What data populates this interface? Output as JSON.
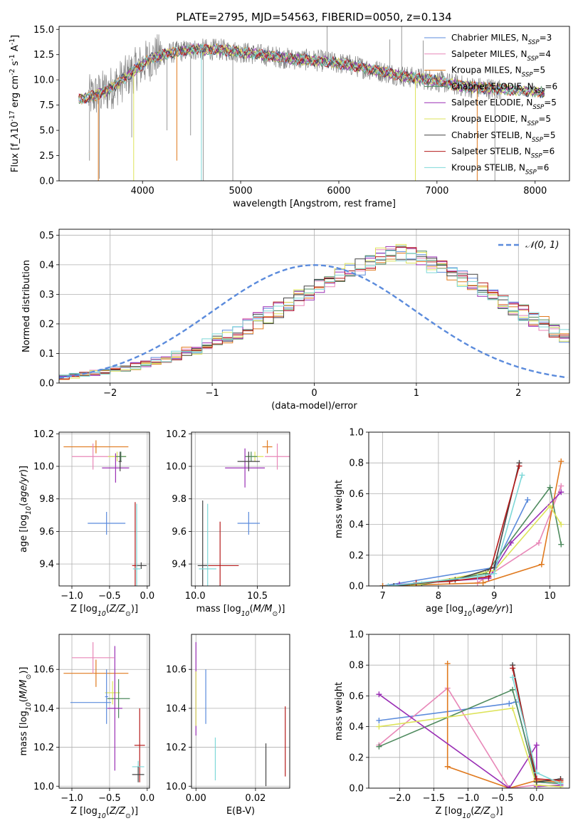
{
  "figure_title": "PLATE=2795, MJD=54563, FIBERID=0050, z=0.134",
  "colors": {
    "Chabrier MILES": "#5b8bdc",
    "Salpeter MILES": "#e887b8",
    "Kroupa MILES": "#e07a1f",
    "Chabrier ELODIE": "#4e8a5e",
    "Salpeter ELODIE": "#9a2fb5",
    "Kroupa ELODIE": "#dde35a",
    "Chabrier STELIB": "#444444",
    "Salpeter STELIB": "#b51b1b",
    "Kroupa STELIB": "#7ed8d8",
    "observed": "#808080",
    "gaussian": "#5b8bdc"
  },
  "chart_data": [
    {
      "id": "spectrum",
      "type": "line",
      "title": "PLATE=2795, MJD=54563, FIBERID=0050, z=0.134",
      "xlabel": "wavelength [Angstrom, rest frame]",
      "ylabel": "Flux [f$_\\lambda$10$^{-17}$ erg cm$^{-2}$ s$^{-1}$ A$^{-1}$]",
      "xlim": [
        3150,
        8350
      ],
      "ylim": [
        0,
        15.3
      ],
      "xticks": [
        4000,
        5000,
        6000,
        7000,
        8000
      ],
      "yticks": [
        "0.0",
        "2.5",
        "5.0",
        "7.5",
        "10.0",
        "12.5",
        "15.0"
      ],
      "grid": false,
      "legend_position": "upper-right",
      "legend": [
        {
          "name": "Chabrier MILES",
          "label": "Chabrier MILES, N$_{SSP}$=3"
        },
        {
          "name": "Salpeter MILES",
          "label": "Salpeter MILES, N$_{SSP}$=4"
        },
        {
          "name": "Kroupa MILES",
          "label": "Kroupa MILES, N$_{SSP}$=5"
        },
        {
          "name": "Chabrier ELODIE",
          "label": "Chabrier ELODIE, N$_{SSP}$=6"
        },
        {
          "name": "Salpeter ELODIE",
          "label": "Salpeter ELODIE, N$_{SSP}$=5"
        },
        {
          "name": "Kroupa ELODIE",
          "label": "Kroupa ELODIE, N$_{SSP}$=5"
        },
        {
          "name": "Chabrier STELIB",
          "label": "Chabrier STELIB, N$_{SSP}$=5"
        },
        {
          "name": "Salpeter STELIB",
          "label": "Salpeter STELIB, N$_{SSP}$=6"
        },
        {
          "name": "Kroupa STELIB",
          "label": "Kroupa STELIB, N$_{SSP}$=6"
        }
      ],
      "continuum": [
        [
          3350,
          8.1
        ],
        [
          3500,
          8.4
        ],
        [
          3650,
          9.0
        ],
        [
          3800,
          10.0
        ],
        [
          3950,
          11.2
        ],
        [
          4100,
          12.2
        ],
        [
          4300,
          12.7
        ],
        [
          4500,
          13.0
        ],
        [
          4800,
          13.0
        ],
        [
          5200,
          12.5
        ],
        [
          5500,
          12.1
        ],
        [
          5800,
          11.9
        ],
        [
          6100,
          11.5
        ],
        [
          6400,
          10.9
        ],
        [
          6700,
          10.3
        ],
        [
          7000,
          9.9
        ],
        [
          7300,
          9.3
        ],
        [
          7600,
          9.1
        ],
        [
          7900,
          8.9
        ],
        [
          8100,
          8.7
        ]
      ],
      "model_range": [
        3350,
        8100
      ],
      "observed_range": [
        3450,
        7650
      ],
      "observed_spikes": [
        [
          3460,
          2.0
        ],
        [
          3560,
          0.2
        ],
        [
          3890,
          4.3
        ],
        [
          4250,
          5.0
        ],
        [
          4490,
          4.5
        ],
        [
          4620,
          0.0
        ],
        [
          4920,
          0.0
        ],
        [
          5880,
          15.3
        ],
        [
          6520,
          14.0
        ],
        [
          6640,
          15.3
        ],
        [
          6860,
          13.9
        ],
        [
          7180,
          10.3
        ],
        [
          7590,
          0.0
        ]
      ],
      "model_spikes": [
        {
          "series": "Kroupa MILES",
          "x": 3550,
          "y": 0.0
        },
        {
          "series": "Kroupa ELODIE",
          "x": 3910,
          "y": 0.0
        },
        {
          "series": "Kroupa STELIB",
          "x": 4600,
          "y": 0.0
        },
        {
          "series": "Kroupa MILES",
          "x": 4350,
          "y": 2.0
        },
        {
          "series": "Kroupa ELODIE",
          "x": 6780,
          "y": 0.0
        },
        {
          "series": "Kroupa MILES",
          "x": 7410,
          "y": 0.0
        }
      ]
    },
    {
      "id": "residuals",
      "type": "area",
      "xlabel": "(data-model)/error",
      "ylabel": "Normed distribution",
      "xlim": [
        -2.5,
        2.5
      ],
      "ylim": [
        0,
        0.52
      ],
      "xticks": [
        "−2",
        "−1",
        "0",
        "1",
        "2"
      ],
      "yticks": [
        "0.0",
        "0.1",
        "0.2",
        "0.3",
        "0.4",
        "0.5"
      ],
      "grid": true,
      "legend_position": "upper-right",
      "legend": [
        {
          "name": "gaussian",
          "label": "$\\mathcal{N}(0, 1)$"
        }
      ],
      "bin_width": 0.1,
      "bin_start": -2.5,
      "histogram_envelope": [
        0.02,
        0.025,
        0.03,
        0.035,
        0.04,
        0.045,
        0.05,
        0.058,
        0.065,
        0.075,
        0.085,
        0.095,
        0.105,
        0.115,
        0.13,
        0.145,
        0.16,
        0.175,
        0.19,
        0.21,
        0.23,
        0.25,
        0.27,
        0.29,
        0.31,
        0.33,
        0.35,
        0.37,
        0.38,
        0.39,
        0.41,
        0.43,
        0.44,
        0.44,
        0.43,
        0.42,
        0.4,
        0.39,
        0.37,
        0.35,
        0.34,
        0.32,
        0.3,
        0.28,
        0.26,
        0.24,
        0.22,
        0.2,
        0.18,
        0.16,
        0.14,
        0.12,
        0.1,
        0.09,
        0.08,
        0.07,
        0.06,
        0.05,
        0.045,
        0.04,
        0.035,
        0.03,
        0.025,
        0.02,
        0.018,
        0.016,
        0.014,
        0.012,
        0.01,
        0.01
      ]
    },
    {
      "id": "age_vs_Z",
      "type": "scatter",
      "xlabel": "Z [log$_{10}$($Z/Z_\\odot$)]",
      "ylabel": "age  [log$_{10}$($age/yr$)]",
      "xlim": [
        -1.17,
        0.03
      ],
      "ylim": [
        9.265,
        10.21
      ],
      "xticks": [
        "−1.0",
        "−0.5",
        "0.0"
      ],
      "yticks": [
        "9.4",
        "9.6",
        "9.8",
        "10.0",
        "10.2"
      ],
      "grid": true,
      "points": [
        {
          "series": "Kroupa MILES",
          "x": -0.68,
          "y": 10.12,
          "xerr": 0.43,
          "yerr": 0.04
        },
        {
          "series": "Salpeter MILES",
          "x": -0.72,
          "y": 10.06,
          "xerr": 0.28,
          "yerr": 0.08
        },
        {
          "series": "Kroupa ELODIE",
          "x": -0.4,
          "y": 10.06,
          "xerr": 0.12,
          "yerr": 0.03
        },
        {
          "series": "Chabrier ELODIE",
          "x": -0.35,
          "y": 10.06,
          "xerr": 0.07,
          "yerr": 0.03
        },
        {
          "series": "Salpeter ELODIE",
          "x": -0.42,
          "y": 9.99,
          "xerr": 0.18,
          "yerr": 0.09
        },
        {
          "series": "Chabrier STELIB",
          "x": -0.36,
          "y": 10.03,
          "xerr": 0.02,
          "yerr": 0.06
        },
        {
          "series": "Chabrier MILES",
          "x": -0.54,
          "y": 9.65,
          "xerr": 0.25,
          "yerr": 0.07
        },
        {
          "series": "Salpeter STELIB",
          "x": -0.16,
          "y": 9.39,
          "xerr": 0.04,
          "yerr": 0.39
        },
        {
          "series": "Chabrier STELIB",
          "x": -0.08,
          "y": 9.39,
          "xerr": 0.07,
          "yerr": 0.02
        },
        {
          "series": "Kroupa STELIB",
          "x": -0.14,
          "y": 9.37,
          "xerr": 0.05,
          "yerr": 0.4
        }
      ]
    },
    {
      "id": "age_vs_mass",
      "type": "scatter",
      "xlabel": "mass [log$_{10}$($M/M_\\odot$)]",
      "ylabel": "",
      "xlim": [
        9.97,
        10.76
      ],
      "ylim": [
        9.265,
        10.21
      ],
      "xticks": [
        "10.0",
        "10.5"
      ],
      "yticks": [
        "9.4",
        "9.6",
        "9.8",
        "10.0",
        "10.2"
      ],
      "grid": true,
      "points": [
        {
          "series": "Kroupa MILES",
          "x": 10.58,
          "y": 10.12,
          "xerr": 0.04,
          "yerr": 0.04
        },
        {
          "series": "Salpeter MILES",
          "x": 10.66,
          "y": 10.06,
          "xerr": 0.1,
          "yerr": 0.08
        },
        {
          "series": "Kroupa ELODIE",
          "x": 10.48,
          "y": 10.06,
          "xerr": 0.07,
          "yerr": 0.03
        },
        {
          "series": "Chabrier ELODIE",
          "x": 10.45,
          "y": 10.06,
          "xerr": 0.05,
          "yerr": 0.03
        },
        {
          "series": "Salpeter ELODIE",
          "x": 10.4,
          "y": 9.99,
          "xerr": 0.16,
          "yerr": 0.12
        },
        {
          "series": "Chabrier STELIB",
          "x": 10.43,
          "y": 10.03,
          "xerr": 0.09,
          "yerr": 0.06
        },
        {
          "series": "Chabrier MILES",
          "x": 10.43,
          "y": 9.65,
          "xerr": 0.09,
          "yerr": 0.07
        },
        {
          "series": "Salpeter STELIB",
          "x": 10.2,
          "y": 9.39,
          "xerr": 0.15,
          "yerr": 0.27
        },
        {
          "series": "Chabrier STELIB",
          "x": 10.06,
          "y": 9.39,
          "xerr": 0.04,
          "yerr": 0.4
        },
        {
          "series": "Kroupa STELIB",
          "x": 10.1,
          "y": 9.37,
          "xerr": 0.07,
          "yerr": 0.4
        }
      ]
    },
    {
      "id": "weight_vs_age",
      "type": "line",
      "xlabel": "age  [log$_{10}$($age/yr$)]",
      "ylabel": "mass weight",
      "xlim": [
        6.75,
        10.35
      ],
      "ylim": [
        0,
        1.0
      ],
      "xticks": [
        "7",
        "8",
        "9",
        "10"
      ],
      "yticks": [
        "0.0",
        "0.2",
        "0.4",
        "0.6",
        "0.8",
        "1.0"
      ],
      "grid": true,
      "series": [
        {
          "name": "Chabrier MILES",
          "x": [
            7.0,
            9.0,
            9.6
          ],
          "y": [
            0.0,
            0.12,
            0.56
          ]
        },
        {
          "name": "Salpeter MILES",
          "x": [
            8.7,
            9.8,
            10.2
          ],
          "y": [
            0.02,
            0.28,
            0.65
          ]
        },
        {
          "name": "Kroupa MILES",
          "x": [
            7.0,
            8.8,
            9.85,
            10.2
          ],
          "y": [
            0.0,
            0.02,
            0.14,
            0.81
          ]
        },
        {
          "name": "Chabrier ELODIE",
          "x": [
            7.7,
            8.85,
            10.0,
            10.2
          ],
          "y": [
            0.01,
            0.08,
            0.64,
            0.27
          ]
        },
        {
          "name": "Salpeter ELODIE",
          "x": [
            7.3,
            8.9,
            9.3,
            10.2
          ],
          "y": [
            0.01,
            0.05,
            0.28,
            0.61
          ]
        },
        {
          "name": "Kroupa ELODIE",
          "x": [
            7.5,
            9.0,
            10.0,
            10.2
          ],
          "y": [
            0.0,
            0.1,
            0.52,
            0.4
          ]
        },
        {
          "name": "Chabrier STELIB",
          "x": [
            7.2,
            8.3,
            9.0,
            9.45
          ],
          "y": [
            0.0,
            0.04,
            0.12,
            0.8
          ]
        },
        {
          "name": "Salpeter STELIB",
          "x": [
            7.6,
            8.2,
            8.9,
            9.45
          ],
          "y": [
            0.02,
            0.03,
            0.06,
            0.78
          ]
        },
        {
          "name": "Kroupa STELIB",
          "x": [
            7.1,
            8.7,
            9.0,
            9.5
          ],
          "y": [
            0.0,
            0.06,
            0.08,
            0.72
          ]
        }
      ]
    },
    {
      "id": "mass_vs_Z",
      "type": "scatter",
      "xlabel": "Z [log$_{10}$($Z/Z_\\odot$)]",
      "ylabel": "mass [log$_{10}$($M/M_\\odot$)]",
      "xlim": [
        -1.17,
        0.03
      ],
      "ylim": [
        9.99,
        10.78
      ],
      "xticks": [
        "−1.0",
        "−0.5",
        "0.0"
      ],
      "yticks": [
        "10.0",
        "10.2",
        "10.4",
        "10.6"
      ],
      "grid": true,
      "points": [
        {
          "series": "Kroupa MILES",
          "x": -0.68,
          "y": 10.58,
          "xerr": 0.43,
          "yerr": 0.07
        },
        {
          "series": "Salpeter MILES",
          "x": -0.72,
          "y": 10.66,
          "xerr": 0.28,
          "yerr": 0.08
        },
        {
          "series": "Chabrier MILES",
          "x": -0.75,
          "y": 10.43,
          "xerr": 0.27,
          "yerr": 0.0
        },
        {
          "series": "Kroupa ELODIE",
          "x": -0.46,
          "y": 10.48,
          "xerr": 0.1,
          "yerr": 0.06
        },
        {
          "series": "Chabrier ELODIE",
          "x": -0.38,
          "y": 10.45,
          "xerr": 0.15,
          "yerr": 0.1
        },
        {
          "series": "Salpeter ELODIE",
          "x": -0.43,
          "y": 10.4,
          "xerr": 0.1,
          "yerr": 0.32
        },
        {
          "series": "Chabrier MILES",
          "x": -0.54,
          "y": 10.46,
          "xerr": 0.02,
          "yerr": 0.14
        },
        {
          "series": "Salpeter STELIB",
          "x": -0.1,
          "y": 10.21,
          "xerr": 0.07,
          "yerr": 0.19
        },
        {
          "series": "Kroupa STELIB",
          "x": -0.12,
          "y": 10.1,
          "xerr": 0.08,
          "yerr": 0.03
        },
        {
          "series": "Chabrier STELIB",
          "x": -0.12,
          "y": 10.06,
          "xerr": 0.08,
          "yerr": 0.04
        }
      ]
    },
    {
      "id": "mass_vs_EBV",
      "type": "scatter",
      "xlabel": "E(B-V)",
      "ylabel": "",
      "xlim": [
        -0.0015,
        0.0315
      ],
      "ylim": [
        9.99,
        10.78
      ],
      "xticks": [
        "0.00",
        "0.02"
      ],
      "yticks": [
        "10.0",
        "10.2",
        "10.4",
        "10.6"
      ],
      "grid": true,
      "points": [
        {
          "series": "Salpeter ELODIE",
          "x": 0.0,
          "y": 10.5,
          "xerr": 0.0,
          "yerr": 0.24
        },
        {
          "series": "Kroupa ELODIE",
          "x": 0.0,
          "y": 10.45,
          "xerr": 0.0,
          "yerr": 0.14
        },
        {
          "series": "Chabrier MILES",
          "x": 0.0033,
          "y": 10.46,
          "xerr": 0.0,
          "yerr": 0.14
        },
        {
          "series": "Kroupa STELIB",
          "x": 0.0065,
          "y": 10.14,
          "xerr": 0.0,
          "yerr": 0.11
        },
        {
          "series": "Chabrier STELIB",
          "x": 0.0235,
          "y": 10.11,
          "xerr": 0.0,
          "yerr": 0.11
        },
        {
          "series": "Salpeter STELIB",
          "x": 0.03,
          "y": 10.23,
          "xerr": 0.0,
          "yerr": 0.18
        }
      ]
    },
    {
      "id": "weight_vs_Z",
      "type": "line",
      "xlabel": "Z [log$_{10}$($Z/Z_\\odot$)]",
      "ylabel": "mass weight",
      "xlim": [
        -2.45,
        0.48
      ],
      "ylim": [
        0,
        1.0
      ],
      "xticks": [
        "−2.0",
        "−1.5",
        "−1.0",
        "−0.5",
        "0.0"
      ],
      "yticks": [
        "0.0",
        "0.2",
        "0.4",
        "0.6",
        "0.8",
        "1.0"
      ],
      "grid": true,
      "series": [
        {
          "name": "Chabrier MILES",
          "x": [
            -2.3,
            -0.4,
            -0.3,
            0.0,
            0.35
          ],
          "y": [
            0.44,
            0.55,
            0.56,
            0.04,
            0.03
          ]
        },
        {
          "name": "Salpeter MILES",
          "x": [
            -2.3,
            -1.3,
            -0.4,
            0.0,
            0.35
          ],
          "y": [
            0.28,
            0.65,
            0.0,
            0.02,
            0.01
          ]
        },
        {
          "name": "Kroupa MILES",
          "x": [
            -1.3,
            -1.3,
            -0.4,
            0.0,
            0.35
          ],
          "y": [
            0.81,
            0.14,
            0.0,
            0.05,
            0.04
          ]
        },
        {
          "name": "Chabrier ELODIE",
          "x": [
            -2.3,
            -0.35,
            0.0,
            0.35
          ],
          "y": [
            0.27,
            0.64,
            0.04,
            0.03
          ]
        },
        {
          "name": "Salpeter ELODIE",
          "x": [
            -2.3,
            -0.4,
            0.0,
            0.0,
            0.35
          ],
          "y": [
            0.61,
            0.0,
            0.28,
            0.01,
            0.02
          ]
        },
        {
          "name": "Kroupa ELODIE",
          "x": [
            -2.3,
            -0.35,
            0.0,
            0.35
          ],
          "y": [
            0.4,
            0.52,
            0.02,
            0.01
          ]
        },
        {
          "name": "Chabrier STELIB",
          "x": [
            -0.35,
            0.0,
            0.35
          ],
          "y": [
            0.8,
            0.04,
            0.06
          ]
        },
        {
          "name": "Salpeter STELIB",
          "x": [
            -0.35,
            0.0,
            0.35
          ],
          "y": [
            0.78,
            0.06,
            0.05
          ]
        },
        {
          "name": "Kroupa STELIB",
          "x": [
            -0.35,
            0.0,
            0.35
          ],
          "y": [
            0.72,
            0.1,
            0.03
          ]
        }
      ]
    }
  ]
}
